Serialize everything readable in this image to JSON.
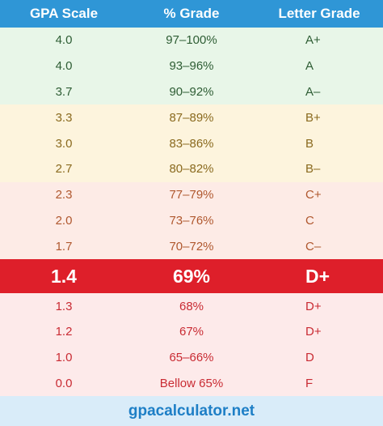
{
  "headers": [
    "GPA Scale",
    "% Grade",
    "Letter Grade"
  ],
  "rows": [
    {
      "gpa": "4.0",
      "percent": "97–100%",
      "letter": "A+",
      "bg": "#e8f6e8",
      "fg": "#2e5d34"
    },
    {
      "gpa": "4.0",
      "percent": "93–96%",
      "letter": "A",
      "bg": "#e8f6e8",
      "fg": "#2e5d34"
    },
    {
      "gpa": "3.7",
      "percent": "90–92%",
      "letter": "A–",
      "bg": "#e8f6e8",
      "fg": "#2e5d34"
    },
    {
      "gpa": "3.3",
      "percent": "87–89%",
      "letter": "B+",
      "bg": "#fdf4dd",
      "fg": "#8a6a1f"
    },
    {
      "gpa": "3.0",
      "percent": "83–86%",
      "letter": "B",
      "bg": "#fdf4dd",
      "fg": "#8a6a1f"
    },
    {
      "gpa": "2.7",
      "percent": "80–82%",
      "letter": "B–",
      "bg": "#fdf4dd",
      "fg": "#8a6a1f"
    },
    {
      "gpa": "2.3",
      "percent": "77–79%",
      "letter": "C+",
      "bg": "#fdebe6",
      "fg": "#b0582f"
    },
    {
      "gpa": "2.0",
      "percent": "73–76%",
      "letter": "C",
      "bg": "#fdebe6",
      "fg": "#b0582f"
    },
    {
      "gpa": "1.7",
      "percent": "70–72%",
      "letter": "C–",
      "bg": "#fdebe6",
      "fg": "#b0582f"
    },
    {
      "gpa": "1.4",
      "percent": "69%",
      "letter": "D+",
      "bg": "#de1f2a",
      "fg": "#ffffff",
      "highlight": true
    },
    {
      "gpa": "1.3",
      "percent": "68%",
      "letter": "D+",
      "bg": "#fdeaea",
      "fg": "#c92b33"
    },
    {
      "gpa": "1.2",
      "percent": "67%",
      "letter": "D+",
      "bg": "#fdeaea",
      "fg": "#c92b33"
    },
    {
      "gpa": "1.0",
      "percent": "65–66%",
      "letter": "D",
      "bg": "#fdeaea",
      "fg": "#c92b33"
    },
    {
      "gpa": "0.0",
      "percent": "Bellow 65%",
      "letter": "F",
      "bg": "#fdeaea",
      "fg": "#c92b33"
    }
  ],
  "footer": "gpacalculator.net",
  "colors": {
    "header_bg": "#2f96d6",
    "footer_bg": "#d9ecf9",
    "footer_fg": "#1e7fc6"
  }
}
